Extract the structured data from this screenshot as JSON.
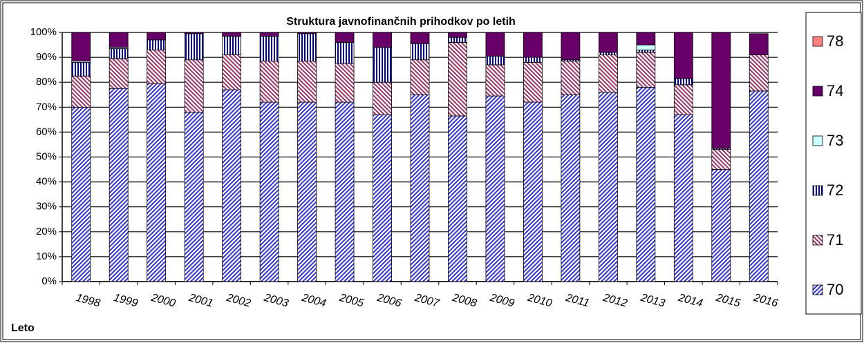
{
  "chart_data": {
    "type": "stacked_bar_percent",
    "title": "Struktura javnofinančnih prihodkov po letih",
    "x_label": "Leto",
    "categories": [
      "1998",
      "1999",
      "2000",
      "2001",
      "2002",
      "2003",
      "2004",
      "2005",
      "2006",
      "2007",
      "2008",
      "2009",
      "2010",
      "2011",
      "2012",
      "2013",
      "2014",
      "2015",
      "2016"
    ],
    "series": [
      {
        "name": "70",
        "color": "#3333cc",
        "values": [
          70,
          77.5,
          79.5,
          68,
          77,
          72,
          72,
          72,
          67,
          75,
          66.5,
          74.5,
          72,
          75,
          76,
          78,
          67,
          45,
          76.5
        ]
      },
      {
        "name": "71",
        "color": "#993366",
        "values": [
          12.5,
          12,
          13.5,
          21,
          14,
          16.5,
          16.5,
          15.5,
          13,
          14,
          29.5,
          12.5,
          16,
          13.5,
          15,
          14,
          12,
          8,
          14.5
        ]
      },
      {
        "name": "72",
        "color": "#000080",
        "values": [
          5.5,
          4,
          4,
          10.5,
          7.5,
          10,
          11,
          8.5,
          14,
          6.5,
          2,
          3.5,
          2,
          0.5,
          1,
          1,
          2.5,
          0.5,
          0
        ]
      },
      {
        "name": "73",
        "color": "#ccffff",
        "values": [
          0.5,
          0.5,
          0,
          0,
          0,
          0,
          0,
          0,
          0,
          0,
          0,
          0,
          0,
          0,
          0,
          2,
          0,
          0,
          0
        ]
      },
      {
        "name": "74",
        "color": "#660066",
        "values": [
          11.5,
          6,
          3,
          0.5,
          1.5,
          1.5,
          0.5,
          4,
          6,
          4.5,
          2,
          9.5,
          10,
          11,
          8,
          5,
          18.5,
          46.5,
          8.5
        ]
      },
      {
        "name": "78",
        "color": "#ff8080",
        "values": [
          0,
          0,
          0,
          0,
          0,
          0,
          0,
          0,
          0,
          0,
          0,
          0,
          0,
          0,
          0,
          0,
          0,
          0,
          0
        ]
      }
    ],
    "ylim": [
      0,
      100
    ],
    "yticks": [
      {
        "value": 0,
        "label": "0%"
      },
      {
        "value": 10,
        "label": "10%"
      },
      {
        "value": 20,
        "label": "20%"
      },
      {
        "value": 30,
        "label": "30%"
      },
      {
        "value": 40,
        "label": "40%"
      },
      {
        "value": 50,
        "label": "50%"
      },
      {
        "value": 60,
        "label": "60%"
      },
      {
        "value": 70,
        "label": "70%"
      },
      {
        "value": 80,
        "label": "80%"
      },
      {
        "value": 90,
        "label": "90%"
      },
      {
        "value": 100,
        "label": "100%"
      }
    ],
    "grid": true
  }
}
